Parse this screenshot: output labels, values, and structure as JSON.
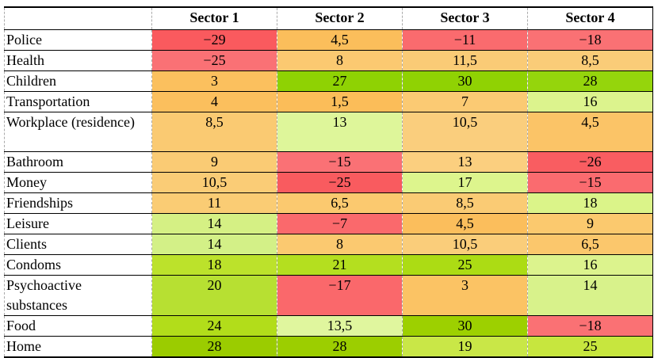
{
  "table": {
    "corner_label": "",
    "columns": [
      "Sector 1",
      "Sector 2",
      "Sector 3",
      "Sector 4"
    ],
    "rows": [
      {
        "label": "Police",
        "cells": [
          {
            "value": "−29",
            "color": "#FA5A5E"
          },
          {
            "value": "4,5",
            "color": "#FBBE5B"
          },
          {
            "value": "−11",
            "color": "#FA6B6E"
          },
          {
            "value": "−18",
            "color": "#FA7174"
          }
        ]
      },
      {
        "label": "Health",
        "cells": [
          {
            "value": "−25",
            "color": "#FA7175"
          },
          {
            "value": "8",
            "color": "#FBC971"
          },
          {
            "value": "11,5",
            "color": "#FACB76"
          },
          {
            "value": "8,5",
            "color": "#FACC78"
          }
        ]
      },
      {
        "label": "Children",
        "cells": [
          {
            "value": "3",
            "color": "#FBC05E"
          },
          {
            "value": "27",
            "color": "#8FD203"
          },
          {
            "value": "30",
            "color": "#90D203"
          },
          {
            "value": "28",
            "color": "#95D50C"
          }
        ]
      },
      {
        "label": "Transportation",
        "cells": [
          {
            "value": "4",
            "color": "#FBBF5D"
          },
          {
            "value": "1,5",
            "color": "#FBBD59"
          },
          {
            "value": "7",
            "color": "#FBCA73"
          },
          {
            "value": "16",
            "color": "#DCF38D"
          }
        ]
      },
      {
        "label": "Workplace (residence)",
        "cells": [
          {
            "value": "8,5",
            "color": "#FACA72"
          },
          {
            "value": "13",
            "color": "#DEF69A"
          },
          {
            "value": "10,5",
            "color": "#FACE7D"
          },
          {
            "value": "4,5",
            "color": "#FBC467"
          }
        ]
      },
      {
        "label": "Bathroom",
        "cells": [
          {
            "value": "9",
            "color": "#FACB74"
          },
          {
            "value": "−15",
            "color": "#FA7175"
          },
          {
            "value": "13",
            "color": "#FBCF7F"
          },
          {
            "value": "−26",
            "color": "#F95D61"
          }
        ]
      },
      {
        "label": "Money",
        "cells": [
          {
            "value": "10,5",
            "color": "#FACC76"
          },
          {
            "value": "−25",
            "color": "#F95B5F"
          },
          {
            "value": "17",
            "color": "#DDF58D"
          },
          {
            "value": "−15",
            "color": "#FA6B6F"
          }
        ]
      },
      {
        "label": "Friendships",
        "cells": [
          {
            "value": "11",
            "color": "#FACC74"
          },
          {
            "value": "6,5",
            "color": "#FBC96F"
          },
          {
            "value": "8,5",
            "color": "#FACB74"
          },
          {
            "value": "18",
            "color": "#DBF489"
          }
        ]
      },
      {
        "label": "Leisure",
        "cells": [
          {
            "value": "14",
            "color": "#D5F084"
          },
          {
            "value": "−7",
            "color": "#FA696C"
          },
          {
            "value": "4,5",
            "color": "#FBBE5C"
          },
          {
            "value": "9",
            "color": "#FBC96E"
          }
        ]
      },
      {
        "label": "Clients",
        "cells": [
          {
            "value": "14",
            "color": "#D3F087"
          },
          {
            "value": "8",
            "color": "#FBC970"
          },
          {
            "value": "10,5",
            "color": "#FACD7A"
          },
          {
            "value": "6,5",
            "color": "#FBC76C"
          }
        ]
      },
      {
        "label": "Condoms",
        "cells": [
          {
            "value": "18",
            "color": "#BCE22B"
          },
          {
            "value": "21",
            "color": "#B4DF1F"
          },
          {
            "value": "25",
            "color": "#ACDC14"
          },
          {
            "value": "16",
            "color": "#DCF38D"
          }
        ]
      },
      {
        "label": "Psychoactive substances",
        "cells": [
          {
            "value": "20",
            "color": "#B7E032"
          },
          {
            "value": "−17",
            "color": "#FA686B"
          },
          {
            "value": "3",
            "color": "#FBC364"
          },
          {
            "value": "14",
            "color": "#D8F28B"
          }
        ]
      },
      {
        "label": "Food",
        "cells": [
          {
            "value": "24",
            "color": "#B2DD1A"
          },
          {
            "value": "13,5",
            "color": "#E0F69E"
          },
          {
            "value": "30",
            "color": "#9DD000"
          },
          {
            "value": "−18",
            "color": "#FA7174"
          }
        ]
      },
      {
        "label": "Home",
        "cells": [
          {
            "value": "28",
            "color": "#9BCC00"
          },
          {
            "value": "28",
            "color": "#9CCE00"
          },
          {
            "value": "19",
            "color": "#C9E747"
          },
          {
            "value": "25",
            "color": "#C7E63E"
          }
        ]
      }
    ]
  },
  "chart_data": {
    "type": "heatmap",
    "title": "",
    "columns": [
      "Sector 1",
      "Sector 2",
      "Sector 3",
      "Sector 4"
    ],
    "rows": [
      "Police",
      "Health",
      "Children",
      "Transportation",
      "Workplace (residence)",
      "Bathroom",
      "Money",
      "Friendships",
      "Leisure",
      "Clients",
      "Condoms",
      "Psychoactive substances",
      "Food",
      "Home"
    ],
    "values": [
      [
        -29,
        4.5,
        -11,
        -18
      ],
      [
        -25,
        8,
        11.5,
        8.5
      ],
      [
        3,
        27,
        30,
        28
      ],
      [
        4,
        1.5,
        7,
        16
      ],
      [
        8.5,
        13,
        10.5,
        4.5
      ],
      [
        9,
        -15,
        13,
        -26
      ],
      [
        10.5,
        -25,
        17,
        -15
      ],
      [
        11,
        6.5,
        8.5,
        18
      ],
      [
        14,
        -7,
        4.5,
        9
      ],
      [
        14,
        8,
        10.5,
        6.5
      ],
      [
        18,
        21,
        25,
        16
      ],
      [
        20,
        -17,
        3,
        14
      ],
      [
        24,
        13.5,
        30,
        -18
      ],
      [
        28,
        28,
        19,
        25
      ]
    ],
    "value_range": [
      -29,
      30
    ],
    "colorscale": {
      "low": "#FA5A5E",
      "mid": "#FBC467",
      "high": "#90D203"
    },
    "decimal_separator": ",",
    "legend": "none",
    "grid": "solid black horizontal rules, dashed gray vertical rules"
  }
}
